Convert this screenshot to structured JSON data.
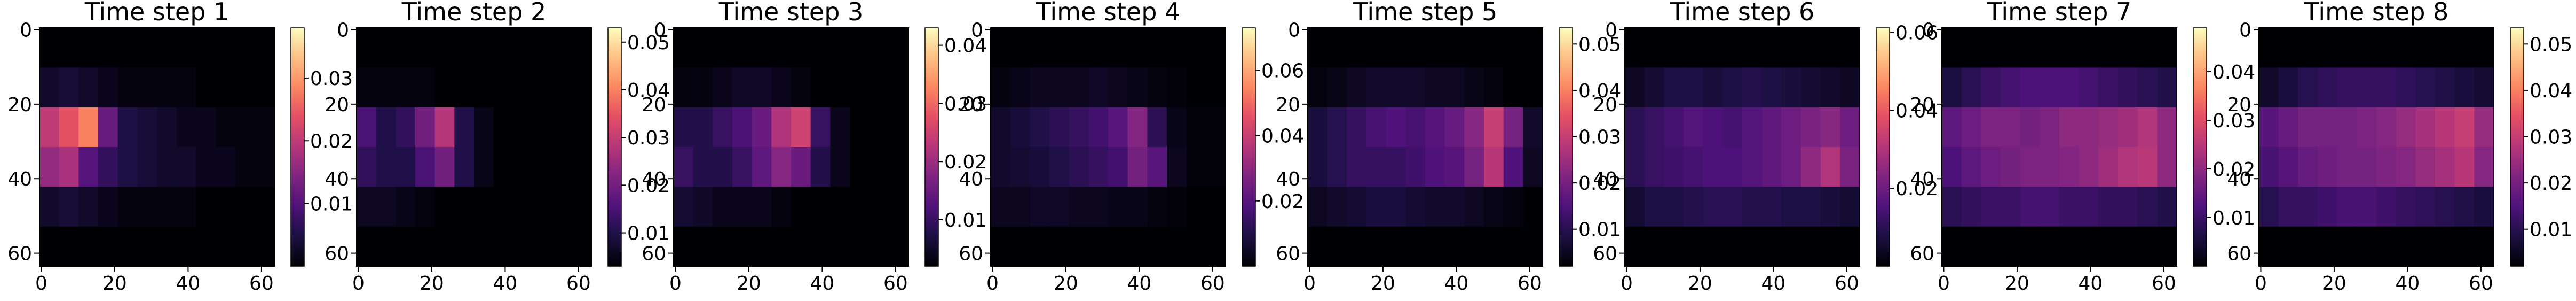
{
  "chart_data": [
    {
      "type": "heatmap",
      "title": "Time step 1",
      "colormap": "magma",
      "xlim": [
        -0.5,
        63.5
      ],
      "ylim": [
        63.5,
        -0.5
      ],
      "xticks": [
        0,
        20,
        40,
        60
      ],
      "yticks": [
        0,
        20,
        40,
        60
      ],
      "clim": [
        0,
        0.038
      ],
      "cticks": [
        0.01,
        0.02,
        0.03
      ],
      "z": [
        [
          0,
          0,
          0,
          0,
          0,
          0,
          0,
          0,
          0,
          0,
          0,
          0
        ],
        [
          0.003,
          0.004,
          0.003,
          0.002,
          0.001,
          0.001,
          0.001,
          0.001,
          0,
          0,
          0,
          0
        ],
        [
          0.02,
          0.024,
          0.028,
          0.012,
          0.005,
          0.004,
          0.003,
          0.002,
          0.002,
          0.001,
          0.001,
          0.001
        ],
        [
          0.016,
          0.018,
          0.01,
          0.007,
          0.005,
          0.004,
          0.003,
          0.003,
          0.002,
          0.002,
          0.001,
          0.001
        ],
        [
          0.003,
          0.004,
          0.003,
          0.002,
          0.001,
          0.001,
          0.001,
          0.001,
          0,
          0,
          0,
          0
        ],
        [
          0,
          0,
          0,
          0,
          0,
          0,
          0,
          0,
          0,
          0,
          0,
          0
        ]
      ]
    },
    {
      "type": "heatmap",
      "title": "Time step 2",
      "colormap": "magma",
      "xlim": [
        -0.5,
        63.5
      ],
      "ylim": [
        63.5,
        -0.5
      ],
      "xticks": [
        0,
        20,
        40,
        60
      ],
      "yticks": [
        0,
        20,
        40,
        60
      ],
      "clim": [
        0.003,
        0.053
      ],
      "cticks": [
        0.01,
        0.02,
        0.03,
        0.04,
        0.05
      ],
      "z": [
        [
          0,
          0,
          0,
          0,
          0,
          0,
          0,
          0,
          0,
          0,
          0,
          0
        ],
        [
          0.004,
          0.004,
          0.004,
          0.004,
          0.003,
          0.002,
          0.001,
          0.001,
          0.001,
          0,
          0,
          0
        ],
        [
          0.015,
          0.01,
          0.012,
          0.02,
          0.028,
          0.01,
          0.005,
          0.003,
          0.002,
          0.002,
          0.001,
          0.001
        ],
        [
          0.012,
          0.01,
          0.01,
          0.015,
          0.02,
          0.01,
          0.005,
          0.003,
          0.002,
          0.002,
          0.001,
          0.001
        ],
        [
          0.006,
          0.006,
          0.005,
          0.004,
          0.003,
          0.002,
          0.001,
          0.001,
          0.001,
          0,
          0,
          0
        ],
        [
          0,
          0,
          0,
          0,
          0,
          0,
          0,
          0,
          0,
          0,
          0,
          0
        ]
      ]
    },
    {
      "type": "heatmap",
      "title": "Time step 3",
      "colormap": "magma",
      "xlim": [
        -0.5,
        63.5
      ],
      "ylim": [
        63.5,
        -0.5
      ],
      "xticks": [
        0,
        20,
        40,
        60
      ],
      "yticks": [
        0,
        20,
        40,
        60
      ],
      "clim": [
        0.002,
        0.043
      ],
      "cticks": [
        0.01,
        0.02,
        0.03,
        0.04
      ],
      "z": [
        [
          0,
          0,
          0,
          0,
          0,
          0,
          0,
          0,
          0,
          0,
          0,
          0
        ],
        [
          0.003,
          0.003,
          0.004,
          0.005,
          0.005,
          0.004,
          0.003,
          0.002,
          0.001,
          0,
          0,
          0
        ],
        [
          0.008,
          0.008,
          0.01,
          0.012,
          0.015,
          0.022,
          0.025,
          0.01,
          0.004,
          0.002,
          0.001,
          0.001
        ],
        [
          0.01,
          0.008,
          0.008,
          0.01,
          0.014,
          0.018,
          0.015,
          0.008,
          0.004,
          0.002,
          0.001,
          0.001
        ],
        [
          0.006,
          0.005,
          0.004,
          0.004,
          0.004,
          0.003,
          0.002,
          0.002,
          0.001,
          0,
          0,
          0
        ],
        [
          0,
          0,
          0,
          0,
          0,
          0,
          0,
          0,
          0,
          0,
          0,
          0
        ]
      ]
    },
    {
      "type": "heatmap",
      "title": "Time step 4",
      "colormap": "magma",
      "xlim": [
        -0.5,
        63.5
      ],
      "ylim": [
        63.5,
        -0.5
      ],
      "xticks": [
        0,
        20,
        40,
        60
      ],
      "yticks": [
        0,
        20,
        40,
        60
      ],
      "clim": [
        0,
        0.073
      ],
      "cticks": [
        0.02,
        0.04,
        0.06
      ],
      "z": [
        [
          0,
          0,
          0,
          0,
          0,
          0,
          0,
          0,
          0,
          0,
          0,
          0
        ],
        [
          0.002,
          0.003,
          0.004,
          0.004,
          0.004,
          0.005,
          0.004,
          0.003,
          0.002,
          0.001,
          0,
          0
        ],
        [
          0.006,
          0.008,
          0.01,
          0.012,
          0.014,
          0.016,
          0.02,
          0.028,
          0.012,
          0.003,
          0.001,
          0.001
        ],
        [
          0.006,
          0.007,
          0.008,
          0.01,
          0.012,
          0.014,
          0.016,
          0.025,
          0.02,
          0.004,
          0.001,
          0.001
        ],
        [
          0.004,
          0.004,
          0.005,
          0.005,
          0.004,
          0.004,
          0.003,
          0.003,
          0.002,
          0.001,
          0,
          0
        ],
        [
          0,
          0,
          0,
          0,
          0,
          0,
          0,
          0,
          0,
          0,
          0,
          0
        ]
      ]
    },
    {
      "type": "heatmap",
      "title": "Time step 5",
      "colormap": "magma",
      "xlim": [
        -0.5,
        63.5
      ],
      "ylim": [
        63.5,
        -0.5
      ],
      "xticks": [
        0,
        20,
        40,
        60
      ],
      "yticks": [
        0,
        20,
        40,
        60
      ],
      "clim": [
        0.002,
        0.0535
      ],
      "cticks": [
        0.01,
        0.02,
        0.03,
        0.04,
        0.05
      ],
      "z": [
        [
          0,
          0,
          0,
          0,
          0,
          0,
          0,
          0,
          0,
          0,
          0,
          0
        ],
        [
          0.003,
          0.004,
          0.005,
          0.006,
          0.006,
          0.006,
          0.005,
          0.005,
          0.004,
          0.003,
          0.002,
          0.001
        ],
        [
          0.008,
          0.01,
          0.012,
          0.014,
          0.015,
          0.014,
          0.016,
          0.018,
          0.022,
          0.03,
          0.02,
          0.006
        ],
        [
          0.008,
          0.01,
          0.012,
          0.012,
          0.012,
          0.013,
          0.015,
          0.016,
          0.02,
          0.028,
          0.015,
          0.005
        ],
        [
          0.005,
          0.006,
          0.007,
          0.008,
          0.008,
          0.007,
          0.006,
          0.006,
          0.005,
          0.004,
          0.003,
          0.002
        ],
        [
          0,
          0,
          0,
          0,
          0,
          0,
          0,
          0,
          0,
          0,
          0,
          0
        ]
      ]
    },
    {
      "type": "heatmap",
      "title": "Time step 6",
      "colormap": "magma",
      "xlim": [
        -0.5,
        63.5
      ],
      "ylim": [
        63.5,
        -0.5
      ],
      "xticks": [
        0,
        20,
        40,
        60
      ],
      "yticks": [
        0,
        20,
        40,
        60
      ],
      "clim": [
        0,
        0.0612
      ],
      "cticks": [
        0.02,
        0.04,
        0.06
      ],
      "z": [
        [
          0,
          0,
          0,
          0,
          0,
          0,
          0,
          0,
          0,
          0,
          0,
          0
        ],
        [
          0.004,
          0.006,
          0.008,
          0.008,
          0.007,
          0.008,
          0.009,
          0.008,
          0.007,
          0.006,
          0.005,
          0.004
        ],
        [
          0.01,
          0.012,
          0.014,
          0.016,
          0.015,
          0.014,
          0.016,
          0.018,
          0.02,
          0.022,
          0.024,
          0.02
        ],
        [
          0.01,
          0.012,
          0.013,
          0.014,
          0.015,
          0.015,
          0.016,
          0.018,
          0.02,
          0.025,
          0.03,
          0.022
        ],
        [
          0.006,
          0.008,
          0.008,
          0.009,
          0.01,
          0.01,
          0.009,
          0.009,
          0.008,
          0.008,
          0.007,
          0.006
        ],
        [
          0,
          0,
          0,
          0,
          0,
          0,
          0,
          0,
          0,
          0,
          0,
          0
        ]
      ]
    },
    {
      "type": "heatmap",
      "title": "Time step 7",
      "colormap": "magma",
      "xlim": [
        -0.5,
        63.5
      ],
      "ylim": [
        63.5,
        -0.5
      ],
      "xticks": [
        0,
        20,
        40,
        60
      ],
      "yticks": [
        0,
        20,
        40,
        60
      ],
      "clim": [
        0,
        0.049
      ],
      "cticks": [
        0.01,
        0.02,
        0.03,
        0.04
      ],
      "z": [
        [
          0,
          0,
          0,
          0,
          0,
          0,
          0,
          0,
          0,
          0,
          0,
          0
        ],
        [
          0.006,
          0.008,
          0.01,
          0.011,
          0.012,
          0.012,
          0.012,
          0.011,
          0.01,
          0.009,
          0.008,
          0.007
        ],
        [
          0.014,
          0.016,
          0.018,
          0.018,
          0.017,
          0.018,
          0.02,
          0.02,
          0.021,
          0.022,
          0.024,
          0.02
        ],
        [
          0.012,
          0.014,
          0.016,
          0.017,
          0.018,
          0.018,
          0.019,
          0.02,
          0.022,
          0.024,
          0.025,
          0.02
        ],
        [
          0.008,
          0.009,
          0.01,
          0.01,
          0.011,
          0.011,
          0.01,
          0.01,
          0.009,
          0.009,
          0.008,
          0.007
        ],
        [
          0,
          0,
          0,
          0,
          0,
          0,
          0,
          0,
          0,
          0,
          0,
          0
        ]
      ]
    },
    {
      "type": "heatmap",
      "title": "Time step 8",
      "colormap": "magma",
      "xlim": [
        -0.5,
        63.5
      ],
      "ylim": [
        63.5,
        -0.5
      ],
      "xticks": [
        0,
        20,
        40,
        60
      ],
      "yticks": [
        0,
        20,
        40,
        60
      ],
      "clim": [
        0.002,
        0.0535
      ],
      "cticks": [
        0.01,
        0.02,
        0.03,
        0.04,
        0.05
      ],
      "z": [
        [
          0,
          0,
          0,
          0,
          0,
          0,
          0,
          0,
          0,
          0,
          0,
          0
        ],
        [
          0.006,
          0.008,
          0.01,
          0.011,
          0.012,
          0.012,
          0.012,
          0.011,
          0.01,
          0.009,
          0.008,
          0.007
        ],
        [
          0.016,
          0.018,
          0.02,
          0.02,
          0.02,
          0.021,
          0.022,
          0.024,
          0.026,
          0.028,
          0.03,
          0.024
        ],
        [
          0.014,
          0.016,
          0.018,
          0.019,
          0.02,
          0.02,
          0.021,
          0.022,
          0.024,
          0.026,
          0.028,
          0.022
        ],
        [
          0.01,
          0.012,
          0.012,
          0.013,
          0.014,
          0.014,
          0.013,
          0.012,
          0.011,
          0.01,
          0.009,
          0.008
        ],
        [
          0,
          0,
          0,
          0,
          0,
          0,
          0,
          0,
          0,
          0,
          0,
          0
        ]
      ]
    }
  ]
}
